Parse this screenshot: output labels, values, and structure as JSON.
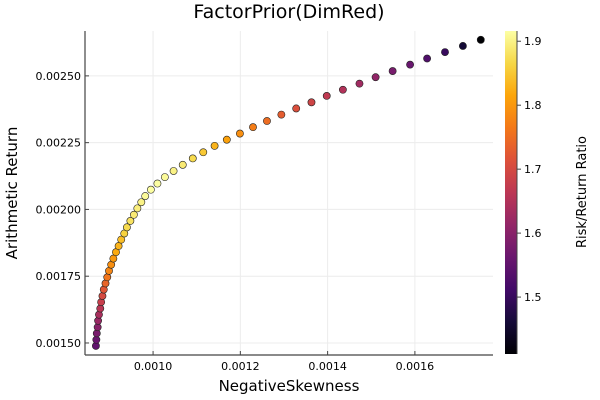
{
  "chart_data": {
    "type": "scatter",
    "title": "FactorPrior(DimRed)",
    "xlabel": "NegativeSkewness",
    "ylabel": "Arithmetic Return",
    "xlim": [
      0.000844,
      0.001779
    ],
    "ylim": [
      0.001455,
      0.002668
    ],
    "xticks": [
      0.001,
      0.0012,
      0.0014,
      0.0016
    ],
    "xtick_labels": [
      "0.0010",
      "0.0012",
      "0.0014",
      "0.0016"
    ],
    "yticks": [
      0.0015,
      0.00175,
      0.002,
      0.00225,
      0.0025
    ],
    "ytick_labels": [
      "0.00150",
      "0.00175",
      "0.00200",
      "0.00225",
      "0.00250"
    ],
    "grid": true,
    "legend": "none",
    "colorbar": {
      "label": "Risk/Return Ratio",
      "colormap": "inferno",
      "range": [
        1.411,
        1.916
      ],
      "ticks": [
        1.5,
        1.6,
        1.7,
        1.8,
        1.9
      ],
      "tick_labels": [
        "1.5",
        "1.6",
        "1.7",
        "1.8",
        "1.9"
      ]
    },
    "x": [
      0.000869,
      0.00087,
      0.000871,
      0.000873,
      0.000874,
      0.000876,
      0.000879,
      0.000881,
      0.000884,
      0.000887,
      0.000891,
      0.000895,
      0.000899,
      0.000904,
      0.000909,
      0.000915,
      0.000921,
      0.000927,
      0.000934,
      0.00094,
      0.000948,
      0.000956,
      0.000964,
      0.000973,
      0.000982,
      0.000995,
      0.00101,
      0.001027,
      0.001047,
      0.001068,
      0.001091,
      0.001115,
      0.001141,
      0.001169,
      0.001199,
      0.001229,
      0.001261,
      0.001294,
      0.001328,
      0.001363,
      0.001398,
      0.001435,
      0.001473,
      0.00151,
      0.001549,
      0.001589,
      0.001628,
      0.001669,
      0.00171,
      0.001751
    ],
    "y": [
      0.001489,
      0.001512,
      0.001536,
      0.001559,
      0.001583,
      0.001606,
      0.001629,
      0.001653,
      0.001676,
      0.0017,
      0.001723,
      0.001746,
      0.00177,
      0.001793,
      0.001816,
      0.00184,
      0.001863,
      0.001887,
      0.00191,
      0.001933,
      0.001957,
      0.00198,
      0.002004,
      0.002027,
      0.00205,
      0.002074,
      0.002097,
      0.002121,
      0.002144,
      0.002167,
      0.002191,
      0.002214,
      0.002238,
      0.002261,
      0.002284,
      0.002308,
      0.002331,
      0.002355,
      0.002378,
      0.002401,
      0.002425,
      0.002448,
      0.002471,
      0.002495,
      0.002518,
      0.002542,
      0.002565,
      0.002589,
      0.002612,
      0.002635
    ],
    "color_values": [
      1.55,
      1.56,
      1.58,
      1.6,
      1.62,
      1.64,
      1.66,
      1.68,
      1.7,
      1.72,
      1.74,
      1.76,
      1.78,
      1.79,
      1.8,
      1.82,
      1.83,
      1.84,
      1.86,
      1.87,
      1.88,
      1.89,
      1.895,
      1.9,
      1.91,
      1.915,
      1.915,
      1.91,
      1.9,
      1.89,
      1.87,
      1.85,
      1.83,
      1.81,
      1.79,
      1.77,
      1.75,
      1.73,
      1.71,
      1.69,
      1.67,
      1.65,
      1.63,
      1.61,
      1.58,
      1.56,
      1.53,
      1.5,
      1.46,
      1.41
    ]
  }
}
